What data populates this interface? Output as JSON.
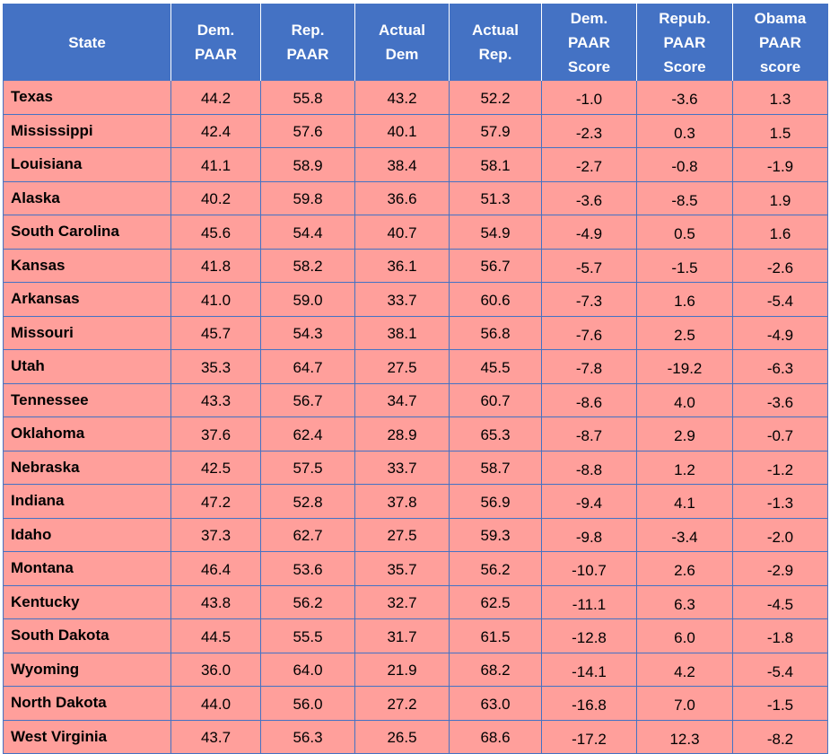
{
  "headers": [
    [
      "State"
    ],
    [
      "Dem.",
      "PAAR"
    ],
    [
      "Rep.",
      "PAAR"
    ],
    [
      "Actual",
      "Dem"
    ],
    [
      "Actual",
      "Rep."
    ],
    [
      "Dem.",
      "PAAR",
      "Score"
    ],
    [
      "Repub.",
      "PAAR",
      "Score"
    ],
    [
      "Obama",
      "PAAR",
      "score"
    ]
  ],
  "rows": [
    [
      "Texas",
      "44.2",
      "55.8",
      "43.2",
      "52.2",
      "-1.0",
      "-3.6",
      "1.3"
    ],
    [
      "Mississippi",
      "42.4",
      "57.6",
      "40.1",
      "57.9",
      "-2.3",
      "0.3",
      "1.5"
    ],
    [
      "Louisiana",
      "41.1",
      "58.9",
      "38.4",
      "58.1",
      "-2.7",
      "-0.8",
      "-1.9"
    ],
    [
      "Alaska",
      "40.2",
      "59.8",
      "36.6",
      "51.3",
      "-3.6",
      "-8.5",
      "1.9"
    ],
    [
      "South Carolina",
      "45.6",
      "54.4",
      "40.7",
      "54.9",
      "-4.9",
      "0.5",
      "1.6"
    ],
    [
      "Kansas",
      "41.8",
      "58.2",
      "36.1",
      "56.7",
      "-5.7",
      "-1.5",
      "-2.6"
    ],
    [
      "Arkansas",
      "41.0",
      "59.0",
      "33.7",
      "60.6",
      "-7.3",
      "1.6",
      "-5.4"
    ],
    [
      "Missouri",
      "45.7",
      "54.3",
      "38.1",
      "56.8",
      "-7.6",
      "2.5",
      "-4.9"
    ],
    [
      "Utah",
      "35.3",
      "64.7",
      "27.5",
      "45.5",
      "-7.8",
      "-19.2",
      "-6.3"
    ],
    [
      "Tennessee",
      "43.3",
      "56.7",
      "34.7",
      "60.7",
      "-8.6",
      "4.0",
      "-3.6"
    ],
    [
      "Oklahoma",
      "37.6",
      "62.4",
      "28.9",
      "65.3",
      "-8.7",
      "2.9",
      "-0.7"
    ],
    [
      "Nebraska",
      "42.5",
      "57.5",
      "33.7",
      "58.7",
      "-8.8",
      "1.2",
      "-1.2"
    ],
    [
      "Indiana",
      "47.2",
      "52.8",
      "37.8",
      "56.9",
      "-9.4",
      "4.1",
      "-1.3"
    ],
    [
      "Idaho",
      "37.3",
      "62.7",
      "27.5",
      "59.3",
      "-9.8",
      "-3.4",
      "-2.0"
    ],
    [
      "Montana",
      "46.4",
      "53.6",
      "35.7",
      "56.2",
      "-10.7",
      "2.6",
      "-2.9"
    ],
    [
      "Kentucky",
      "43.8",
      "56.2",
      "32.7",
      "62.5",
      "-11.1",
      "6.3",
      "-4.5"
    ],
    [
      "South Dakota",
      "44.5",
      "55.5",
      "31.7",
      "61.5",
      "-12.8",
      "6.0",
      "-1.8"
    ],
    [
      "Wyoming",
      "36.0",
      "64.0",
      "21.9",
      "68.2",
      "-14.1",
      "4.2",
      "-5.4"
    ],
    [
      "North Dakota",
      "44.0",
      "56.0",
      "27.2",
      "63.0",
      "-16.8",
      "7.0",
      "-1.5"
    ],
    [
      "West Virginia",
      "43.7",
      "56.3",
      "26.5",
      "68.6",
      "-17.2",
      "12.3",
      "-8.2"
    ]
  ],
  "colors": {
    "header_bg": "#4472c4",
    "header_text": "#ffffff",
    "row_bg": "#ff9f9b",
    "border": "#4472c4"
  }
}
